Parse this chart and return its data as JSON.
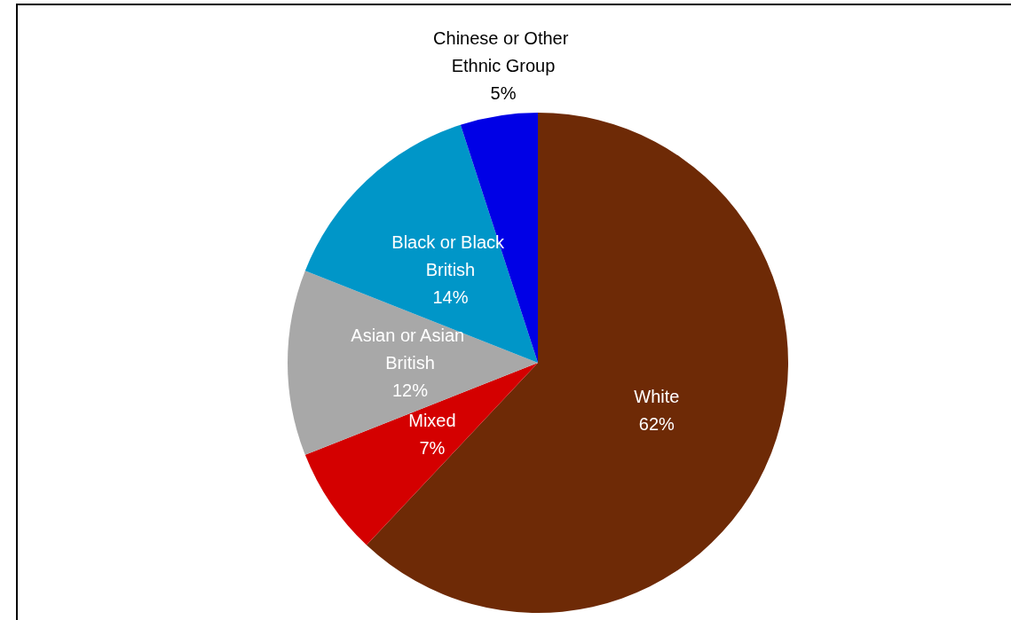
{
  "chart_data": {
    "type": "pie",
    "categories": [
      "White",
      "Mixed",
      "Asian or Asian British",
      "Black or Black British",
      "Chinese or Other Ethnic Group"
    ],
    "values": [
      62,
      7,
      12,
      14,
      5
    ],
    "colors": [
      "#6e2a06",
      "#d40000",
      "#a8a8a8",
      "#0096c8",
      "#0000e6"
    ],
    "value_labels": [
      "62%",
      "7%",
      "12%",
      "14%",
      "5%"
    ],
    "legend": false
  }
}
